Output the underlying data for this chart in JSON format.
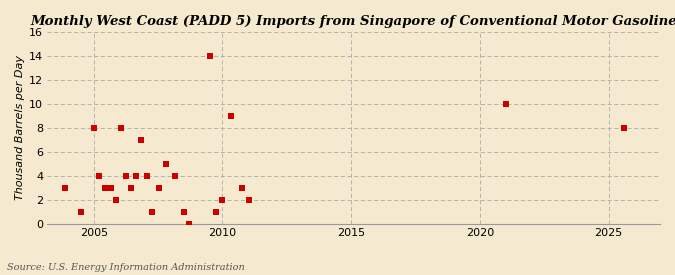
{
  "title": "Monthly West Coast (PADD 5) Imports from Singapore of Conventional Motor Gasoline",
  "ylabel": "Thousand Barrels per Day",
  "source": "Source: U.S. Energy Information Administration",
  "background_color": "#f5e9d0",
  "marker_color": "#cc0000",
  "xlim": [
    2003.2,
    2027.0
  ],
  "ylim": [
    0,
    16
  ],
  "yticks": [
    0,
    2,
    4,
    6,
    8,
    10,
    12,
    14,
    16
  ],
  "xticks": [
    2005,
    2010,
    2015,
    2020,
    2025
  ],
  "grid_color": "#aaaaaa",
  "scatter_x": [
    2003.9,
    2004.5,
    2005.0,
    2005.2,
    2005.45,
    2005.65,
    2005.85,
    2006.05,
    2006.25,
    2006.45,
    2006.65,
    2006.85,
    2007.05,
    2007.25,
    2007.55,
    2007.8,
    2008.15,
    2008.5,
    2008.7,
    2009.5,
    2009.75,
    2010.0,
    2010.35,
    2010.75,
    2011.05,
    2021.0,
    2025.6
  ],
  "scatter_y": [
    3,
    1,
    8,
    4,
    3,
    3,
    2,
    8,
    4,
    3,
    4,
    7,
    4,
    1,
    3,
    5,
    4,
    1,
    0,
    14,
    1,
    2,
    9,
    3,
    2,
    10,
    8
  ]
}
